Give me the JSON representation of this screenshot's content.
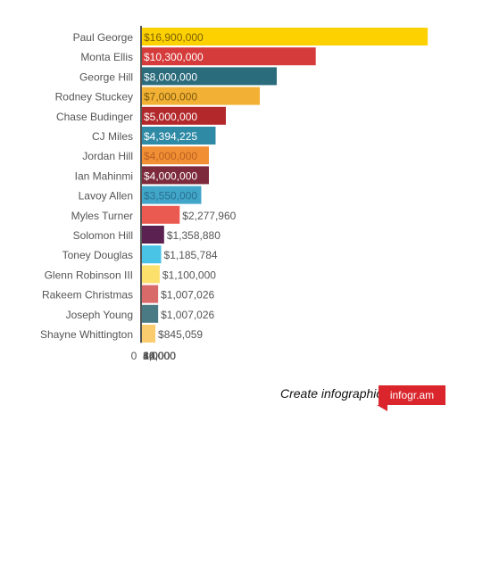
{
  "chart_data": {
    "type": "bar",
    "orientation": "horizontal",
    "categories": [
      "Paul George",
      "Monta Ellis",
      "George Hill",
      "Rodney Stuckey",
      "Chase Budinger",
      "CJ Miles",
      "Jordan Hill",
      "Ian Mahinmi",
      "Lavoy Allen",
      "Myles Turner",
      "Solomon Hill",
      "Toney Douglas",
      "Glenn Robinson III",
      "Rakeem Christmas",
      "Joseph Young",
      "Shayne Whittington"
    ],
    "values": [
      16900000,
      10300000,
      8000000,
      7000000,
      5000000,
      4394225,
      4000000,
      4000000,
      3550000,
      2277960,
      1358880,
      1185784,
      1100000,
      1007026,
      1007026,
      845059
    ],
    "value_labels": [
      "$16,900,000",
      "$10,300,000",
      "$8,000,000",
      "$7,000,000",
      "$5,000,000",
      "$4,394,225",
      "$4,000,000",
      "$4,000,000",
      "$3,550,000",
      "$2,277,960",
      "$1,358,880",
      "$1,185,784",
      "$1,100,000",
      "$1,007,026",
      "$1,007,026",
      "$845,059"
    ],
    "colors": [
      "#fdd100",
      "#d63b3b",
      "#2a6b7c",
      "#f2b134",
      "#b3282b",
      "#2f8aa6",
      "#f18f35",
      "#7d2b3c",
      "#41a6c9",
      "#eb5a50",
      "#5b2150",
      "#49c3e6",
      "#fbe16b",
      "#d96a6a",
      "#4a7a84",
      "#fbcc6e"
    ],
    "label_colors": [
      "#7a6000",
      "#ffffff",
      "#ffffff",
      "#7a5a10",
      "#ffffff",
      "#ffffff",
      "#b86020",
      "#ffffff",
      "#2a7090",
      "#555555",
      "#555555",
      "#555555",
      "#555555",
      "#555555",
      "#555555",
      "#555555"
    ],
    "xticks": [
      0,
      2000,
      4000,
      6000,
      8000,
      10000,
      12000,
      14000,
      16000
    ],
    "xtick_labels": [
      "0",
      "2,000",
      "4,000",
      "6,000",
      "8,000",
      "10,000",
      "12,000",
      "14,000",
      "16,000"
    ],
    "xlim": [
      0,
      17500
    ],
    "value_unit_per_tick": 1000,
    "grid": true,
    "title": "",
    "xlabel": "",
    "ylabel": ""
  },
  "footer": {
    "text": "Create infographics",
    "brand": "infogr.am"
  }
}
